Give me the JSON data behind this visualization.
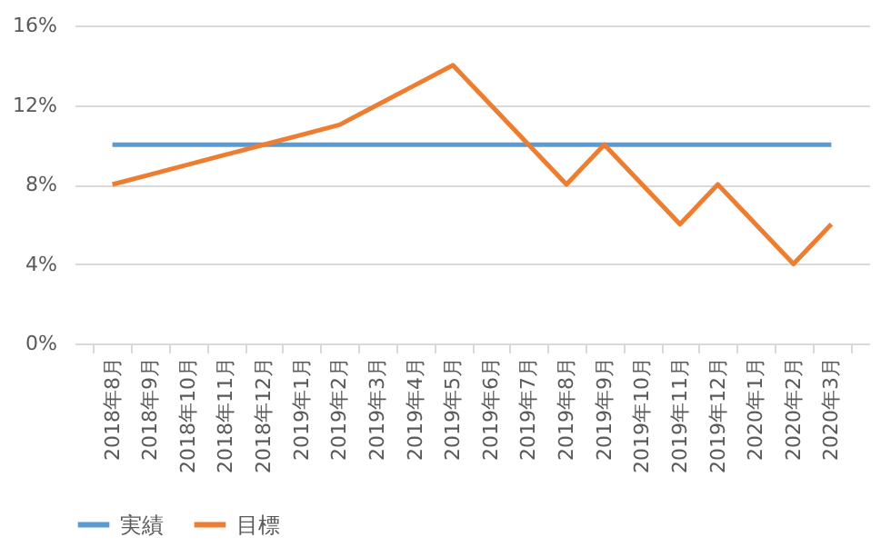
{
  "chart_data": {
    "type": "line",
    "categories": [
      "2018年8月",
      "2018年9月",
      "2018年10月",
      "2018年11月",
      "2018年12月",
      "2019年1月",
      "2019年2月",
      "2019年3月",
      "2019年4月",
      "2019年5月",
      "2019年6月",
      "2019年7月",
      "2019年8月",
      "2019年9月",
      "2019年10月",
      "2019年11月",
      "2019年12月",
      "2020年1月",
      "2020年2月",
      "2020年3月"
    ],
    "series": [
      {
        "name": "実績",
        "color": "#5b9bd5",
        "values": [
          10,
          10,
          10,
          10,
          10,
          10,
          10,
          10,
          10,
          10,
          10,
          10,
          10,
          10,
          10,
          10,
          10,
          10,
          10,
          10
        ]
      },
      {
        "name": "目標",
        "color": "#ed7d31",
        "values": [
          8,
          8.5,
          9,
          9.5,
          10,
          10.5,
          11,
          12,
          13,
          14,
          12,
          10,
          8,
          10,
          8,
          6,
          8,
          6,
          4,
          6
        ]
      }
    ],
    "ylim": [
      0,
      16
    ],
    "yticks": [
      {
        "value": 0,
        "label": "0%"
      },
      {
        "value": 4,
        "label": "4%"
      },
      {
        "value": 8,
        "label": "8%"
      },
      {
        "value": 12,
        "label": "12%"
      },
      {
        "value": 16,
        "label": "16%"
      }
    ],
    "grid": "y",
    "legend": "bottom",
    "marker": "none",
    "line_style": "solid"
  }
}
